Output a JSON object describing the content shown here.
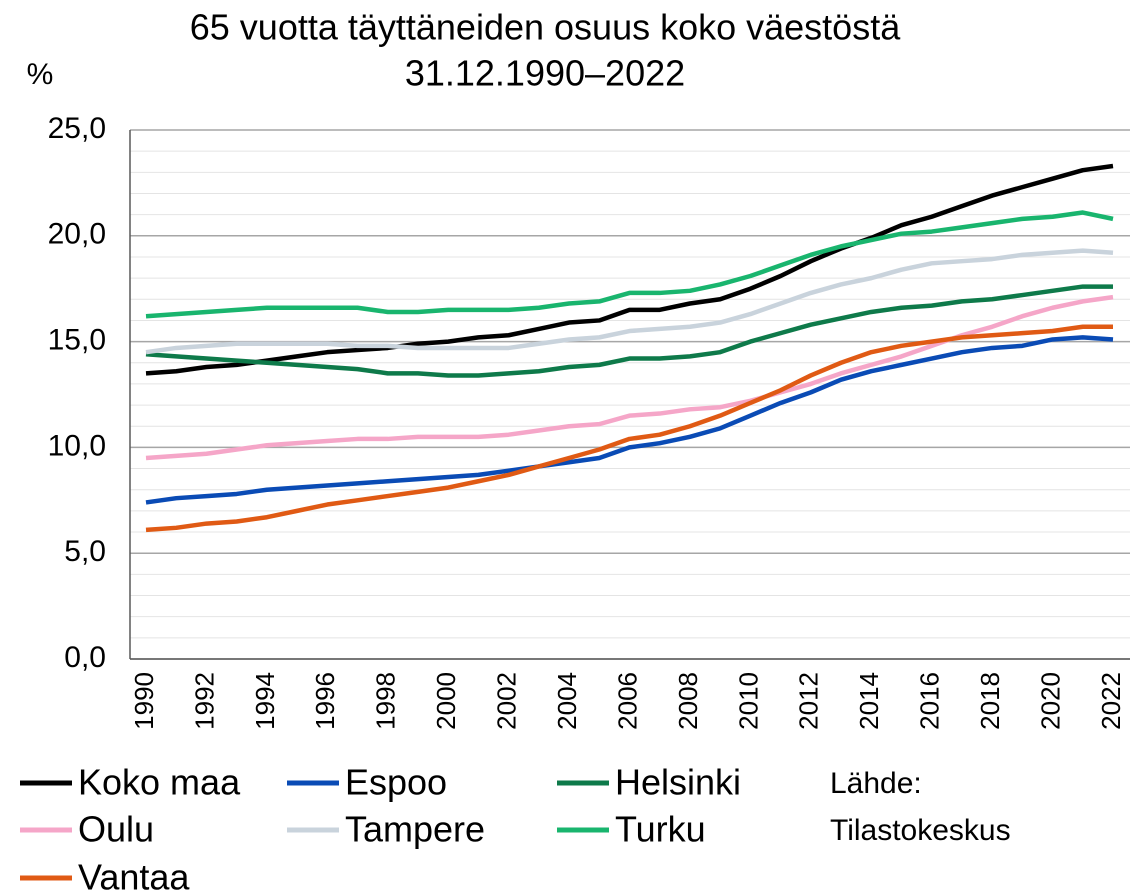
{
  "chart_data": {
    "type": "line",
    "title": "65 vuotta täyttäneiden osuus koko väestöstä",
    "subtitle": "31.12.1990–2022",
    "y_label": "%",
    "source": [
      "Lähde:",
      "Tilastokeskus"
    ],
    "x": [
      1990,
      1991,
      1992,
      1993,
      1994,
      1995,
      1996,
      1997,
      1998,
      1999,
      2000,
      2001,
      2002,
      2003,
      2004,
      2005,
      2006,
      2007,
      2008,
      2009,
      2010,
      2011,
      2012,
      2013,
      2014,
      2015,
      2016,
      2017,
      2018,
      2019,
      2020,
      2021,
      2022
    ],
    "xlim": [
      1990,
      2022
    ],
    "xticks": [
      1990,
      1992,
      1994,
      1996,
      1998,
      2000,
      2002,
      2004,
      2006,
      2008,
      2010,
      2012,
      2014,
      2016,
      2018,
      2020,
      2022
    ],
    "ylim": [
      0,
      25
    ],
    "yticks": [
      {
        "value": 0,
        "label": "0,0"
      },
      {
        "value": 5,
        "label": "5,0"
      },
      {
        "value": 10,
        "label": "10,0"
      },
      {
        "value": 15,
        "label": "15,0"
      },
      {
        "value": 20,
        "label": "20,0"
      },
      {
        "value": 25,
        "label": "25,0"
      }
    ],
    "grid": true,
    "minor_grid_step": 1,
    "series": [
      {
        "name": "Koko maa",
        "color": "#000000",
        "values": [
          13.5,
          13.6,
          13.8,
          13.9,
          14.1,
          14.3,
          14.5,
          14.6,
          14.7,
          14.9,
          15.0,
          15.2,
          15.3,
          15.6,
          15.9,
          16.0,
          16.5,
          16.5,
          16.8,
          17.0,
          17.5,
          18.1,
          18.8,
          19.4,
          19.9,
          20.5,
          20.9,
          21.4,
          21.9,
          22.3,
          22.7,
          23.1,
          23.3
        ]
      },
      {
        "name": "Espoo",
        "color": "#0a4bb5",
        "values": [
          7.4,
          7.6,
          7.7,
          7.8,
          8.0,
          8.1,
          8.2,
          8.3,
          8.4,
          8.5,
          8.6,
          8.7,
          8.9,
          9.1,
          9.3,
          9.5,
          10.0,
          10.2,
          10.5,
          10.9,
          11.5,
          12.1,
          12.6,
          13.2,
          13.6,
          13.9,
          14.2,
          14.5,
          14.7,
          14.8,
          15.1,
          15.2,
          15.1
        ]
      },
      {
        "name": "Helsinki",
        "color": "#0e7a4a",
        "values": [
          14.4,
          14.3,
          14.2,
          14.1,
          14.0,
          13.9,
          13.8,
          13.7,
          13.5,
          13.5,
          13.4,
          13.4,
          13.5,
          13.6,
          13.8,
          13.9,
          14.2,
          14.2,
          14.3,
          14.5,
          15.0,
          15.4,
          15.8,
          16.1,
          16.4,
          16.6,
          16.7,
          16.9,
          17.0,
          17.2,
          17.4,
          17.6,
          17.6
        ]
      },
      {
        "name": "Oulu",
        "color": "#f5a6c8",
        "values": [
          9.5,
          9.6,
          9.7,
          9.9,
          10.1,
          10.2,
          10.3,
          10.4,
          10.4,
          10.5,
          10.5,
          10.5,
          10.6,
          10.8,
          11.0,
          11.1,
          11.5,
          11.6,
          11.8,
          11.9,
          12.2,
          12.6,
          13.0,
          13.5,
          13.9,
          14.3,
          14.8,
          15.3,
          15.7,
          16.2,
          16.6,
          16.9,
          17.1
        ]
      },
      {
        "name": "Tampere",
        "color": "#c9d3dc",
        "values": [
          14.5,
          14.7,
          14.8,
          14.9,
          14.9,
          14.9,
          14.9,
          14.8,
          14.8,
          14.7,
          14.7,
          14.7,
          14.7,
          14.9,
          15.1,
          15.2,
          15.5,
          15.6,
          15.7,
          15.9,
          16.3,
          16.8,
          17.3,
          17.7,
          18.0,
          18.4,
          18.7,
          18.8,
          18.9,
          19.1,
          19.2,
          19.3,
          19.2
        ]
      },
      {
        "name": "Turku",
        "color": "#19b56e",
        "values": [
          16.2,
          16.3,
          16.4,
          16.5,
          16.6,
          16.6,
          16.6,
          16.6,
          16.4,
          16.4,
          16.5,
          16.5,
          16.5,
          16.6,
          16.8,
          16.9,
          17.3,
          17.3,
          17.4,
          17.7,
          18.1,
          18.6,
          19.1,
          19.5,
          19.8,
          20.1,
          20.2,
          20.4,
          20.6,
          20.8,
          20.9,
          21.1,
          20.8
        ]
      },
      {
        "name": "Vantaa",
        "color": "#e05a14",
        "values": [
          6.1,
          6.2,
          6.4,
          6.5,
          6.7,
          7.0,
          7.3,
          7.5,
          7.7,
          7.9,
          8.1,
          8.4,
          8.7,
          9.1,
          9.5,
          9.9,
          10.4,
          10.6,
          11.0,
          11.5,
          12.1,
          12.7,
          13.4,
          14.0,
          14.5,
          14.8,
          15.0,
          15.2,
          15.3,
          15.4,
          15.5,
          15.7,
          15.7
        ]
      }
    ]
  }
}
